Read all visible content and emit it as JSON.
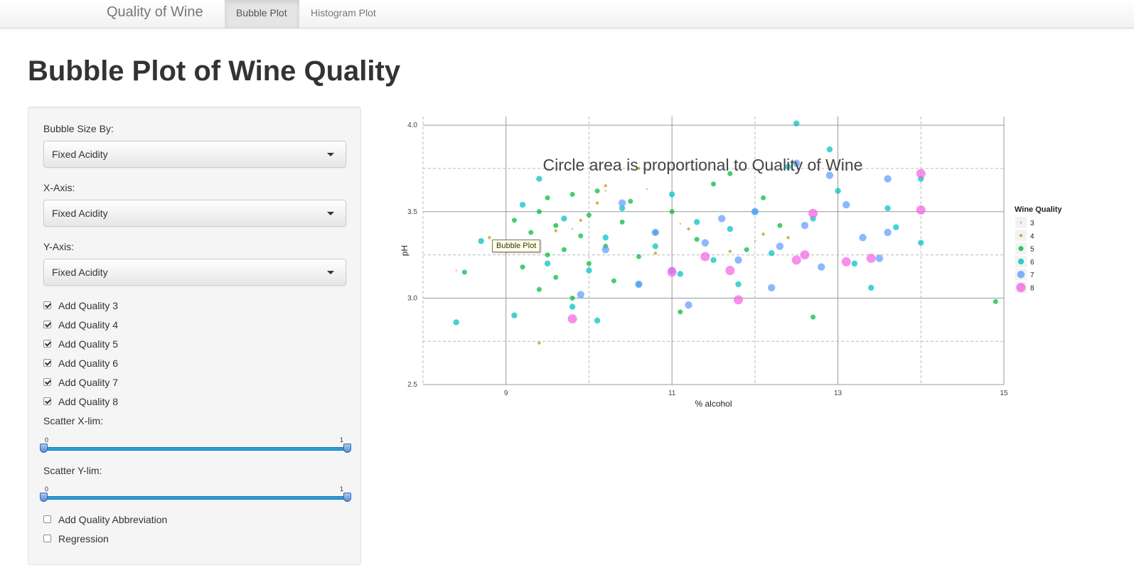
{
  "navbar": {
    "brand": "Quality of Wine",
    "tabs": [
      {
        "label": "Bubble Plot",
        "active": true
      },
      {
        "label": "Histogram Plot",
        "active": false
      }
    ]
  },
  "page": {
    "title": "Bubble Plot of Wine Quality"
  },
  "sidebar": {
    "bubble_size": {
      "label": "Bubble Size By:",
      "value": "Fixed Acidity"
    },
    "x_axis": {
      "label": "X-Axis:",
      "value": "Fixed Acidity"
    },
    "y_axis": {
      "label": "Y-Axis:",
      "value": "Fixed Acidity"
    },
    "quality_checks": [
      {
        "label": "Add Quality 3",
        "checked": true
      },
      {
        "label": "Add Quality 4",
        "checked": true
      },
      {
        "label": "Add Quality 5",
        "checked": true
      },
      {
        "label": "Add Quality 6",
        "checked": true
      },
      {
        "label": "Add Quality 7",
        "checked": true
      },
      {
        "label": "Add Quality 8",
        "checked": true
      }
    ],
    "scatter_xlim": {
      "label": "Scatter X-lim:",
      "min": "0",
      "max": "1",
      "low": 0,
      "high": 1
    },
    "scatter_ylim": {
      "label": "Scatter Y-lim:",
      "min": "0",
      "max": "1",
      "low": 0,
      "high": 1
    },
    "abbrev": {
      "label": "Add Quality Abbreviation",
      "checked": false
    },
    "regression": {
      "label": "Regression",
      "checked": false
    }
  },
  "tooltip": {
    "text": "Bubble Plot"
  },
  "chart_data": {
    "type": "scatter",
    "title": "Circle area is proportional to Quality of Wine",
    "xlabel": "% alcohol",
    "ylabel": "pH",
    "xlim": [
      8,
      15
    ],
    "ylim": [
      2.5,
      4.05
    ],
    "xticks": [
      "9",
      "11",
      "13",
      "15"
    ],
    "yticks": [
      "2.5",
      "3.0",
      "3.5",
      "4.0"
    ],
    "grid": true,
    "legend": {
      "title": "Wine Quality",
      "position": "right"
    },
    "series": [
      {
        "name": "3",
        "color": "#f8766d",
        "points": [
          [
            8.4,
            3.16
          ],
          [
            9.8,
            3.4
          ],
          [
            10.2,
            3.62
          ],
          [
            10.7,
            3.63
          ],
          [
            11.1,
            3.43
          ],
          [
            12.0,
            3.33
          ]
        ]
      },
      {
        "name": "4",
        "color": "#c49a00",
        "points": [
          [
            8.8,
            3.35
          ],
          [
            9.4,
            2.74
          ],
          [
            9.6,
            3.39
          ],
          [
            9.9,
            3.45
          ],
          [
            10.1,
            3.55
          ],
          [
            10.2,
            3.65
          ],
          [
            10.6,
            3.75
          ],
          [
            10.8,
            3.26
          ],
          [
            11.2,
            3.4
          ],
          [
            11.7,
            3.27
          ],
          [
            12.1,
            3.37
          ],
          [
            12.4,
            3.35
          ]
        ]
      },
      {
        "name": "5",
        "color": "#00ba38",
        "points": [
          [
            8.5,
            3.15
          ],
          [
            9.0,
            3.32
          ],
          [
            9.1,
            3.45
          ],
          [
            9.2,
            3.18
          ],
          [
            9.3,
            3.38
          ],
          [
            9.4,
            3.05
          ],
          [
            9.4,
            3.5
          ],
          [
            9.5,
            3.25
          ],
          [
            9.5,
            3.58
          ],
          [
            9.6,
            3.12
          ],
          [
            9.6,
            3.42
          ],
          [
            9.7,
            3.28
          ],
          [
            9.8,
            3.6
          ],
          [
            9.8,
            3.0
          ],
          [
            9.9,
            3.36
          ],
          [
            10.0,
            3.2
          ],
          [
            10.0,
            3.48
          ],
          [
            10.1,
            3.62
          ],
          [
            10.2,
            3.3
          ],
          [
            10.3,
            3.1
          ],
          [
            10.4,
            3.44
          ],
          [
            10.5,
            3.56
          ],
          [
            10.6,
            3.24
          ],
          [
            10.8,
            3.38
          ],
          [
            11.0,
            3.5
          ],
          [
            11.1,
            2.92
          ],
          [
            11.3,
            3.34
          ],
          [
            11.5,
            3.66
          ],
          [
            11.7,
            3.72
          ],
          [
            11.9,
            3.28
          ],
          [
            12.1,
            3.58
          ],
          [
            12.3,
            3.42
          ],
          [
            12.7,
            2.89
          ],
          [
            14.9,
            2.98
          ]
        ]
      },
      {
        "name": "6",
        "color": "#00bfc4",
        "points": [
          [
            8.4,
            2.86
          ],
          [
            8.7,
            3.33
          ],
          [
            9.0,
            3.28
          ],
          [
            9.1,
            2.9
          ],
          [
            9.2,
            3.54
          ],
          [
            9.4,
            3.69
          ],
          [
            9.5,
            3.2
          ],
          [
            9.7,
            3.46
          ],
          [
            9.8,
            2.95
          ],
          [
            10.0,
            3.16
          ],
          [
            10.1,
            2.87
          ],
          [
            10.2,
            3.35
          ],
          [
            10.4,
            3.52
          ],
          [
            10.6,
            3.08
          ],
          [
            10.8,
            3.3
          ],
          [
            11.0,
            3.6
          ],
          [
            11.1,
            3.14
          ],
          [
            11.3,
            3.44
          ],
          [
            11.5,
            3.22
          ],
          [
            11.7,
            3.4
          ],
          [
            11.8,
            3.08
          ],
          [
            12.0,
            3.5
          ],
          [
            12.2,
            3.26
          ],
          [
            12.4,
            3.76
          ],
          [
            12.5,
            4.01
          ],
          [
            12.7,
            3.46
          ],
          [
            12.9,
            3.86
          ],
          [
            13.0,
            3.62
          ],
          [
            13.2,
            3.2
          ],
          [
            13.4,
            3.06
          ],
          [
            13.6,
            3.52
          ],
          [
            13.7,
            3.41
          ],
          [
            14.0,
            3.69
          ],
          [
            14.0,
            3.32
          ]
        ]
      },
      {
        "name": "7",
        "color": "#619cff",
        "points": [
          [
            9.9,
            3.02
          ],
          [
            10.2,
            3.28
          ],
          [
            10.4,
            3.55
          ],
          [
            10.6,
            3.08
          ],
          [
            10.8,
            3.38
          ],
          [
            11.0,
            3.16
          ],
          [
            11.2,
            2.96
          ],
          [
            11.4,
            3.32
          ],
          [
            11.6,
            3.46
          ],
          [
            11.8,
            3.22
          ],
          [
            12.0,
            3.5
          ],
          [
            12.2,
            3.06
          ],
          [
            12.3,
            3.3
          ],
          [
            12.5,
            3.78
          ],
          [
            12.6,
            3.42
          ],
          [
            12.8,
            3.18
          ],
          [
            12.9,
            3.71
          ],
          [
            13.1,
            3.54
          ],
          [
            13.3,
            3.35
          ],
          [
            13.5,
            3.23
          ],
          [
            13.6,
            3.69
          ],
          [
            13.6,
            3.38
          ]
        ]
      },
      {
        "name": "8",
        "color": "#f564e3",
        "points": [
          [
            9.8,
            2.88
          ],
          [
            11.0,
            3.15
          ],
          [
            11.4,
            3.24
          ],
          [
            11.7,
            3.16
          ],
          [
            11.8,
            2.99
          ],
          [
            12.5,
            3.22
          ],
          [
            12.6,
            3.25
          ],
          [
            12.7,
            3.49
          ],
          [
            13.1,
            3.21
          ],
          [
            13.4,
            3.23
          ],
          [
            14.0,
            3.72
          ],
          [
            14.0,
            3.51
          ]
        ]
      }
    ]
  }
}
